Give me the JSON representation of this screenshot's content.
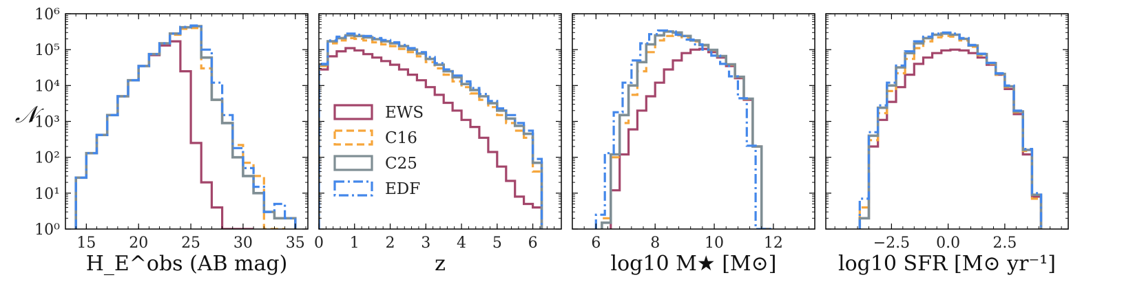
{
  "figure": {
    "ylabel": "𝒩",
    "colors": {
      "EWS": "#a3456a",
      "C16": "#f6a63c",
      "C25": "#7f8e94",
      "EDF": "#4387ea"
    },
    "styles": {
      "EWS": "solid",
      "C16": "dashed",
      "C25": "solid",
      "EDF": "dashdot"
    },
    "legend": {
      "placement": "lower-left",
      "panel": 1,
      "entries": [
        "EWS",
        "C16",
        "C25",
        "EDF"
      ]
    },
    "yticks": [
      {
        "label": "10⁰",
        "value": 1
      },
      {
        "label": "10¹",
        "value": 10
      },
      {
        "label": "10²",
        "value": 100
      },
      {
        "label": "10³",
        "value": 1000
      },
      {
        "label": "10⁴",
        "value": 10000
      },
      {
        "label": "10⁵",
        "value": 100000
      },
      {
        "label": "10⁶",
        "value": 1000000
      }
    ]
  },
  "chart_data": [
    {
      "type": "histogram",
      "xlabel": "H_E^obs (AB mag)",
      "xlim": [
        13,
        36.2
      ],
      "ylim": [
        1,
        1000000
      ],
      "yscale": "log",
      "xticks": [
        15,
        20,
        25,
        30,
        35
      ],
      "series": [
        {
          "name": "EWS",
          "edges": [
            14,
            15,
            16,
            17,
            18,
            19,
            20,
            21,
            22,
            23,
            24,
            25,
            26,
            27,
            28,
            29,
            30,
            31
          ],
          "values": [
            27,
            130,
            420,
            1500,
            5000,
            14000,
            35000,
            70000,
            130000,
            170000,
            25000,
            250,
            20,
            4,
            1,
            0,
            0
          ]
        },
        {
          "name": "C16",
          "edges": [
            14,
            15,
            16,
            17,
            18,
            19,
            20,
            21,
            22,
            23,
            24,
            25,
            26,
            27,
            28,
            29,
            30,
            31,
            32,
            33,
            34
          ],
          "values": [
            27,
            130,
            420,
            1500,
            5000,
            14000,
            35000,
            75000,
            150000,
            260000,
            380000,
            400000,
            30000,
            4000,
            900,
            220,
            70,
            30,
            1,
            0
          ]
        },
        {
          "name": "C25",
          "edges": [
            14,
            15,
            16,
            17,
            18,
            19,
            20,
            21,
            22,
            23,
            24,
            25,
            26,
            27,
            28,
            29,
            30,
            31,
            32,
            33,
            34,
            35
          ],
          "values": [
            27,
            130,
            420,
            1500,
            5000,
            14000,
            35000,
            75000,
            150000,
            280000,
            420000,
            450000,
            60000,
            4000,
            900,
            100,
            30,
            10,
            3,
            2,
            2
          ]
        },
        {
          "name": "EDF",
          "edges": [
            14,
            15,
            16,
            17,
            18,
            19,
            20,
            21,
            22,
            23,
            24,
            25,
            26,
            27,
            28,
            29,
            30,
            31,
            32,
            33,
            34,
            35
          ],
          "values": [
            27,
            130,
            420,
            1500,
            5000,
            14000,
            35000,
            75000,
            150000,
            280000,
            430000,
            470000,
            100000,
            12000,
            1500,
            180,
            50,
            15,
            3,
            5,
            2
          ]
        }
      ]
    },
    {
      "type": "histogram",
      "xlabel": "z",
      "xlim": [
        0,
        6.8
      ],
      "ylim": [
        1,
        1000000
      ],
      "yscale": "log",
      "xticks": [
        0,
        1,
        2,
        3,
        4,
        5,
        6
      ],
      "series": [
        {
          "name": "EWS",
          "edges": [
            0,
            0.25,
            0.5,
            0.75,
            1,
            1.25,
            1.5,
            1.75,
            2,
            2.25,
            2.5,
            2.75,
            3,
            3.25,
            3.5,
            3.75,
            4,
            4.25,
            4.5,
            4.75,
            5,
            5.25,
            5.5,
            5.75,
            6,
            6.25
          ],
          "values": [
            28000,
            65000,
            90000,
            110000,
            95000,
            75000,
            60000,
            48000,
            38000,
            28000,
            20000,
            14000,
            9000,
            5500,
            3300,
            2000,
            1100,
            700,
            350,
            140,
            55,
            22,
            8,
            5,
            4
          ]
        },
        {
          "name": "C16",
          "edges": [
            0,
            0.25,
            0.5,
            0.75,
            1,
            1.25,
            1.5,
            1.75,
            2,
            2.25,
            2.5,
            2.75,
            3,
            3.25,
            3.5,
            3.75,
            4,
            4.25,
            4.5,
            4.75,
            5,
            5.25,
            5.5,
            5.75,
            6,
            6.25
          ],
          "values": [
            35000,
            150000,
            180000,
            210000,
            200000,
            180000,
            160000,
            140000,
            125000,
            105000,
            85000,
            65000,
            45000,
            30000,
            20000,
            13000,
            9000,
            6000,
            4000,
            2500,
            1500,
            900,
            550,
            350,
            40
          ]
        },
        {
          "name": "C25",
          "edges": [
            0,
            0.25,
            0.5,
            0.75,
            1,
            1.25,
            1.5,
            1.75,
            2,
            2.25,
            2.5,
            2.75,
            3,
            3.25,
            3.5,
            3.75,
            4,
            4.25,
            4.5,
            4.75,
            5,
            5.25,
            5.5,
            5.75,
            6,
            6.25
          ],
          "values": [
            38000,
            170000,
            210000,
            250000,
            240000,
            220000,
            195000,
            170000,
            150000,
            125000,
            100000,
            78000,
            55000,
            38000,
            25000,
            17000,
            11000,
            7500,
            5000,
            3200,
            2000,
            1200,
            750,
            450,
            70
          ]
        },
        {
          "name": "EDF",
          "edges": [
            0,
            0.25,
            0.5,
            0.75,
            1,
            1.25,
            1.5,
            1.75,
            2,
            2.25,
            2.5,
            2.75,
            3,
            3.25,
            3.5,
            3.75,
            4,
            4.25,
            4.5,
            4.75,
            5,
            5.25,
            5.5,
            5.75,
            6,
            6.25
          ],
          "values": [
            40000,
            180000,
            230000,
            280000,
            260000,
            240000,
            210000,
            185000,
            160000,
            135000,
            110000,
            85000,
            62000,
            42000,
            28000,
            19000,
            13000,
            8500,
            5800,
            3700,
            2300,
            1500,
            900,
            550,
            90
          ]
        }
      ]
    },
    {
      "type": "histogram",
      "xlabel": "log10 M★ [M⊙]",
      "xlim": [
        5.2,
        13.4
      ],
      "ylim": [
        1,
        1000000
      ],
      "yscale": "log",
      "xticks": [
        6,
        8,
        10,
        12
      ],
      "series": [
        {
          "name": "EWS",
          "edges": [
            6.5,
            6.8,
            7.1,
            7.4,
            7.7,
            8,
            8.3,
            8.6,
            8.9,
            9.2,
            9.5,
            9.8,
            10.1,
            10.4,
            10.7,
            11,
            11.3,
            11.6,
            11.9
          ],
          "values": [
            12,
            120,
            600,
            2000,
            5000,
            12000,
            28000,
            50000,
            80000,
            100000,
            105000,
            85000,
            60000,
            35000,
            16000,
            4000,
            200,
            0
          ]
        },
        {
          "name": "C16",
          "edges": [
            6.2,
            6.5,
            6.8,
            7.1,
            7.4,
            7.7,
            8,
            8.3,
            8.6,
            8.9,
            9.2,
            9.5,
            9.8,
            10.1,
            10.4,
            10.7,
            11,
            11.3,
            11.6,
            11.9
          ],
          "values": [
            2,
            100,
            900,
            5500,
            25000,
            85000,
            180000,
            240000,
            250000,
            220000,
            170000,
            130000,
            95000,
            65000,
            38000,
            17000,
            4200,
            200,
            0
          ]
        },
        {
          "name": "C25",
          "edges": [
            6.2,
            6.5,
            6.8,
            7.1,
            7.4,
            7.7,
            8,
            8.3,
            8.6,
            8.9,
            9.2,
            9.5,
            9.8,
            10.1,
            10.4,
            10.7,
            11,
            11.3,
            11.6,
            11.9
          ],
          "values": [
            1.5,
            120,
            1500,
            10000,
            45000,
            140000,
            250000,
            320000,
            300000,
            240000,
            180000,
            135000,
            98000,
            66000,
            39000,
            17500,
            4300,
            200,
            0
          ]
        },
        {
          "name": "EDF",
          "edges": [
            6,
            6.3,
            6.6,
            6.9,
            7.2,
            7.5,
            7.8,
            8.1,
            8.4,
            8.7,
            9,
            9.3,
            9.6,
            9.9,
            10.2,
            10.5,
            10.8,
            11.1,
            11.4,
            11.7,
            12
          ],
          "values": [
            2.5,
            130,
            1800,
            12000,
            50000,
            150000,
            270000,
            340000,
            320000,
            260000,
            190000,
            140000,
            100000,
            68000,
            40000,
            18000,
            4400,
            210,
            1,
            0
          ]
        }
      ]
    },
    {
      "type": "histogram",
      "xlabel": "log10 SFR [M⊙ yr⁻¹]",
      "xlim": [
        -5.4,
        5.3
      ],
      "ylim": [
        1,
        1000000
      ],
      "yscale": "log",
      "xticks": [
        -2.5,
        0.0,
        2.5
      ],
      "xticklabels": [
        "−2.5",
        "0.0",
        "2.5"
      ],
      "series": [
        {
          "name": "EWS",
          "edges": [
            -3.9,
            -3.5,
            -3.1,
            -2.7,
            -2.3,
            -1.9,
            -1.5,
            -1.1,
            -0.7,
            -0.3,
            0.1,
            0.5,
            0.9,
            1.3,
            1.7,
            2.1,
            2.5,
            2.9,
            3.3,
            3.7,
            4.1
          ],
          "values": [
            2,
            200,
            1100,
            3500,
            9000,
            20000,
            40000,
            60000,
            80000,
            95000,
            100000,
            95000,
            80000,
            60000,
            38000,
            20000,
            8000,
            1600,
            120,
            8
          ]
        },
        {
          "name": "C16",
          "edges": [
            -3.9,
            -3.5,
            -3.1,
            -2.7,
            -2.3,
            -1.9,
            -1.5,
            -1.1,
            -0.7,
            -0.3,
            0.1,
            0.5,
            0.9,
            1.3,
            1.7,
            2.1,
            2.5,
            2.9,
            3.3,
            3.7,
            4.1
          ],
          "values": [
            4,
            300,
            1700,
            7000,
            22000,
            55000,
            110000,
            170000,
            220000,
            240000,
            230000,
            180000,
            120000,
            70000,
            40000,
            20000,
            9000,
            1800,
            150,
            7
          ]
        },
        {
          "name": "C25",
          "edges": [
            -3.9,
            -3.5,
            -3.1,
            -2.7,
            -2.3,
            -1.9,
            -1.5,
            -1.1,
            -0.7,
            -0.3,
            0.1,
            0.5,
            0.9,
            1.3,
            1.7,
            2.1,
            2.5,
            2.9,
            3.3,
            3.7,
            4.1
          ],
          "values": [
            2,
            400,
            2400,
            10000,
            32000,
            80000,
            150000,
            210000,
            260000,
            280000,
            260000,
            200000,
            130000,
            75000,
            42000,
            21000,
            9500,
            1900,
            160,
            9
          ]
        },
        {
          "name": "EDF",
          "edges": [
            -3.9,
            -3.5,
            -3.1,
            -2.7,
            -2.3,
            -1.9,
            -1.5,
            -1.1,
            -0.7,
            -0.3,
            0.1,
            0.5,
            0.9,
            1.3,
            1.7,
            2.1,
            2.5,
            2.9,
            3.3,
            3.7,
            4.1
          ],
          "values": [
            7,
            500,
            2800,
            12000,
            36000,
            90000,
            170000,
            230000,
            280000,
            300000,
            280000,
            210000,
            135000,
            77000,
            43000,
            22000,
            10000,
            2000,
            170,
            10
          ]
        }
      ]
    }
  ]
}
